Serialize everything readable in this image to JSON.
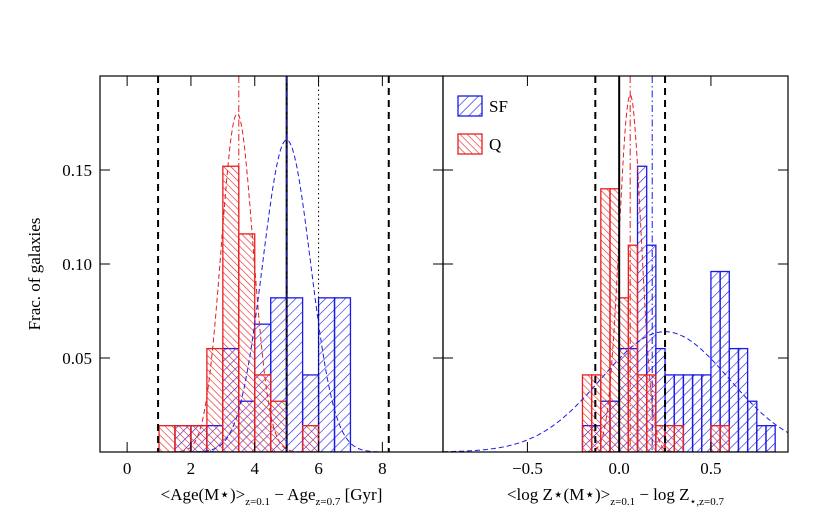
{
  "chart_data": [
    {
      "type": "histogram",
      "ylabel": "Frac. of galaxies",
      "xlabel": [
        "<Age(M⋆)>",
        "z=0.1",
        " − Age",
        "z=0.7",
        " [Gyr]"
      ],
      "xlim": [
        -0.85,
        9.9
      ],
      "ylim": [
        0,
        0.2
      ],
      "xticks": [
        0,
        2,
        4,
        6,
        8
      ],
      "yticks": [
        0.05,
        {
          "value": 0.1,
          "label": "0.10"
        },
        0.15
      ],
      "ytick_labels": true,
      "series": [
        {
          "color": "#1a1ae6",
          "hatch": "forward",
          "bins": [
            1.5,
            2.0,
            2.5,
            3.0,
            3.5,
            4.0,
            4.5,
            5.0,
            5.5,
            6.0,
            6.5,
            7.0
          ],
          "values": [
            0.014,
            0.014,
            0.014,
            0.055,
            0.027,
            0.068,
            0.082,
            0.082,
            0.041,
            0.082,
            0.082
          ]
        },
        {
          "color": "#e81e1e",
          "hatch": "back",
          "bins": [
            1.0,
            1.5,
            2.0,
            2.5,
            3.0,
            3.5,
            4.0,
            4.5,
            5.0,
            5.5,
            6.0
          ],
          "values": [
            0.014,
            0.014,
            0.014,
            0.055,
            0.152,
            0.116,
            0.041,
            0.027,
            0,
            0.014
          ]
        }
      ],
      "fits": [
        {
          "color": "#e81e1e",
          "mean": 3.45,
          "sigma": 0.5,
          "amp": 0.18
        },
        {
          "color": "#1a1ae6",
          "mean": 5.0,
          "sigma": 0.75,
          "amp": 0.166
        }
      ],
      "vlines": [
        {
          "x": 0.97,
          "color": "#000000",
          "style": "dashed"
        },
        {
          "x": 8.2,
          "color": "#000000",
          "style": "dashed"
        },
        {
          "x": 5.0,
          "color": "#000000",
          "style": "solid"
        },
        {
          "x": 6.0,
          "color": "#000000",
          "style": "dotted"
        },
        {
          "x": 3.5,
          "color": "#e81e1e",
          "style": "dashdot"
        },
        {
          "x": 5.0,
          "color": "#1a1ae6",
          "style": "dashdot"
        }
      ]
    },
    {
      "type": "histogram",
      "xlabel": [
        "<log Z⋆(M⋆)>",
        "z=0.1",
        " − log Z",
        "⋆,z=0.7"
      ],
      "xlim": [
        -0.96,
        0.92
      ],
      "ylim": [
        0,
        0.2
      ],
      "xticks": [
        {
          "value": -0.5,
          "label": "−0.5"
        },
        {
          "value": 0,
          "label": "0.0"
        },
        {
          "value": 0.5,
          "label": "0.5"
        }
      ],
      "yticks": [
        0.05,
        0.1,
        0.15
      ],
      "ytick_labels": false,
      "legend": "upper left",
      "series": [
        {
          "name": "SF",
          "color": "#1a1ae6",
          "hatch": "forward",
          "bins": [
            -0.2,
            -0.15,
            -0.1,
            -0.05,
            0,
            0.05,
            0.1,
            0.15,
            0.2,
            0.25,
            0.3,
            0.35,
            0.4,
            0.45,
            0.5,
            0.55,
            0.6,
            0.65,
            0.7,
            0.75,
            0.8,
            0.85
          ],
          "values": [
            0.014,
            0.014,
            0.027,
            0.027,
            0.055,
            0.055,
            0.152,
            0.11,
            0.055,
            0.041,
            0.041,
            0.041,
            0.041,
            0.041,
            0.096,
            0.096,
            0.055,
            0.055,
            0.027,
            0.014,
            0.014
          ]
        },
        {
          "name": "Q",
          "color": "#e81e1e",
          "hatch": "back",
          "bins": [
            -0.2,
            -0.15,
            -0.1,
            -0.05,
            0,
            0.05,
            0.1,
            0.15,
            0.2,
            0.25,
            0.3,
            0.35,
            0.4,
            0.45,
            0.5,
            0.55,
            0.6
          ],
          "values": [
            0.041,
            0.041,
            0.14,
            0.14,
            0.082,
            0.11,
            0.041,
            0.041,
            0.014,
            0.014,
            0.014,
            0,
            0,
            0,
            0.014,
            0.014
          ]
        }
      ],
      "fits": [
        {
          "color": "#e81e1e",
          "mean": 0.06,
          "sigma": 0.06,
          "amp": 0.19
        },
        {
          "color": "#1a1ae6",
          "mean": 0.25,
          "sigma": 0.35,
          "amp": 0.064
        }
      ],
      "vlines": [
        {
          "x": -0.13,
          "color": "#000000",
          "style": "dashed"
        },
        {
          "x": 0.25,
          "color": "#000000",
          "style": "dashed"
        },
        {
          "x": 0,
          "color": "#000000",
          "style": "solid"
        },
        {
          "x": 0.06,
          "color": "#e81e1e",
          "style": "dashdot"
        },
        {
          "x": 0.18,
          "color": "#1a1ae6",
          "style": "dashdot"
        }
      ]
    }
  ]
}
